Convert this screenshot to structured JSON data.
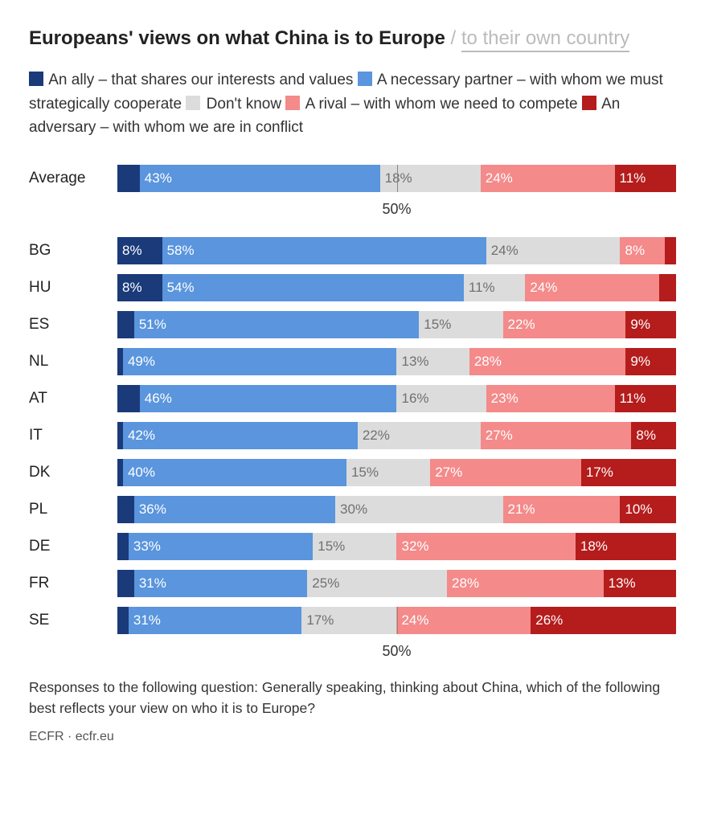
{
  "title": {
    "main": "Europeans' views on what China is to Europe",
    "sep": "/",
    "tab": "to their own country"
  },
  "colors": {
    "ally": "#1a3a7a",
    "partner": "#5a95dd",
    "dontknow": "#dcdcdc",
    "rival": "#f48a8a",
    "adversary": "#b51c1c",
    "label_light": "#ffffff",
    "label_dark": "#707070",
    "background": "#ffffff"
  },
  "legend": [
    {
      "key": "ally",
      "label": "An ally – that shares our interests and values"
    },
    {
      "key": "partner",
      "label": "A necessary partner – with whom we must strategically cooperate"
    },
    {
      "key": "dontknow",
      "label": "Don't know"
    },
    {
      "key": "rival",
      "label": "A rival – with whom we need to compete"
    },
    {
      "key": "adversary",
      "label": "An adversary – with whom we are in conflict"
    }
  ],
  "axis": {
    "tick": 50,
    "label": "50%"
  },
  "label_threshold": 6,
  "average": {
    "label": "Average",
    "values": {
      "ally": 4,
      "partner": 43,
      "dontknow": 18,
      "rival": 24,
      "adversary": 11
    }
  },
  "countries": [
    {
      "label": "BG",
      "values": {
        "ally": 8,
        "partner": 58,
        "dontknow": 24,
        "rival": 8,
        "adversary": 2
      }
    },
    {
      "label": "HU",
      "values": {
        "ally": 8,
        "partner": 54,
        "dontknow": 11,
        "rival": 24,
        "adversary": 3
      }
    },
    {
      "label": "ES",
      "values": {
        "ally": 3,
        "partner": 51,
        "dontknow": 15,
        "rival": 22,
        "adversary": 9
      }
    },
    {
      "label": "NL",
      "values": {
        "ally": 1,
        "partner": 49,
        "dontknow": 13,
        "rival": 28,
        "adversary": 9
      }
    },
    {
      "label": "AT",
      "values": {
        "ally": 4,
        "partner": 46,
        "dontknow": 16,
        "rival": 23,
        "adversary": 11
      }
    },
    {
      "label": "IT",
      "values": {
        "ally": 1,
        "partner": 42,
        "dontknow": 22,
        "rival": 27,
        "adversary": 8
      }
    },
    {
      "label": "DK",
      "values": {
        "ally": 1,
        "partner": 40,
        "dontknow": 15,
        "rival": 27,
        "adversary": 17
      }
    },
    {
      "label": "PL",
      "values": {
        "ally": 3,
        "partner": 36,
        "dontknow": 30,
        "rival": 21,
        "adversary": 10
      }
    },
    {
      "label": "DE",
      "values": {
        "ally": 2,
        "partner": 33,
        "dontknow": 15,
        "rival": 32,
        "adversary": 18
      }
    },
    {
      "label": "FR",
      "values": {
        "ally": 3,
        "partner": 31,
        "dontknow": 25,
        "rival": 28,
        "adversary": 13
      }
    },
    {
      "label": "SE",
      "values": {
        "ally": 2,
        "partner": 31,
        "dontknow": 17,
        "rival": 24,
        "adversary": 26
      }
    }
  ],
  "footnote": "Responses to the following question: Generally speaking, thinking about China, which of the following best reflects your view on who it is to Europe?",
  "source": "ECFR · ecfr.eu"
}
